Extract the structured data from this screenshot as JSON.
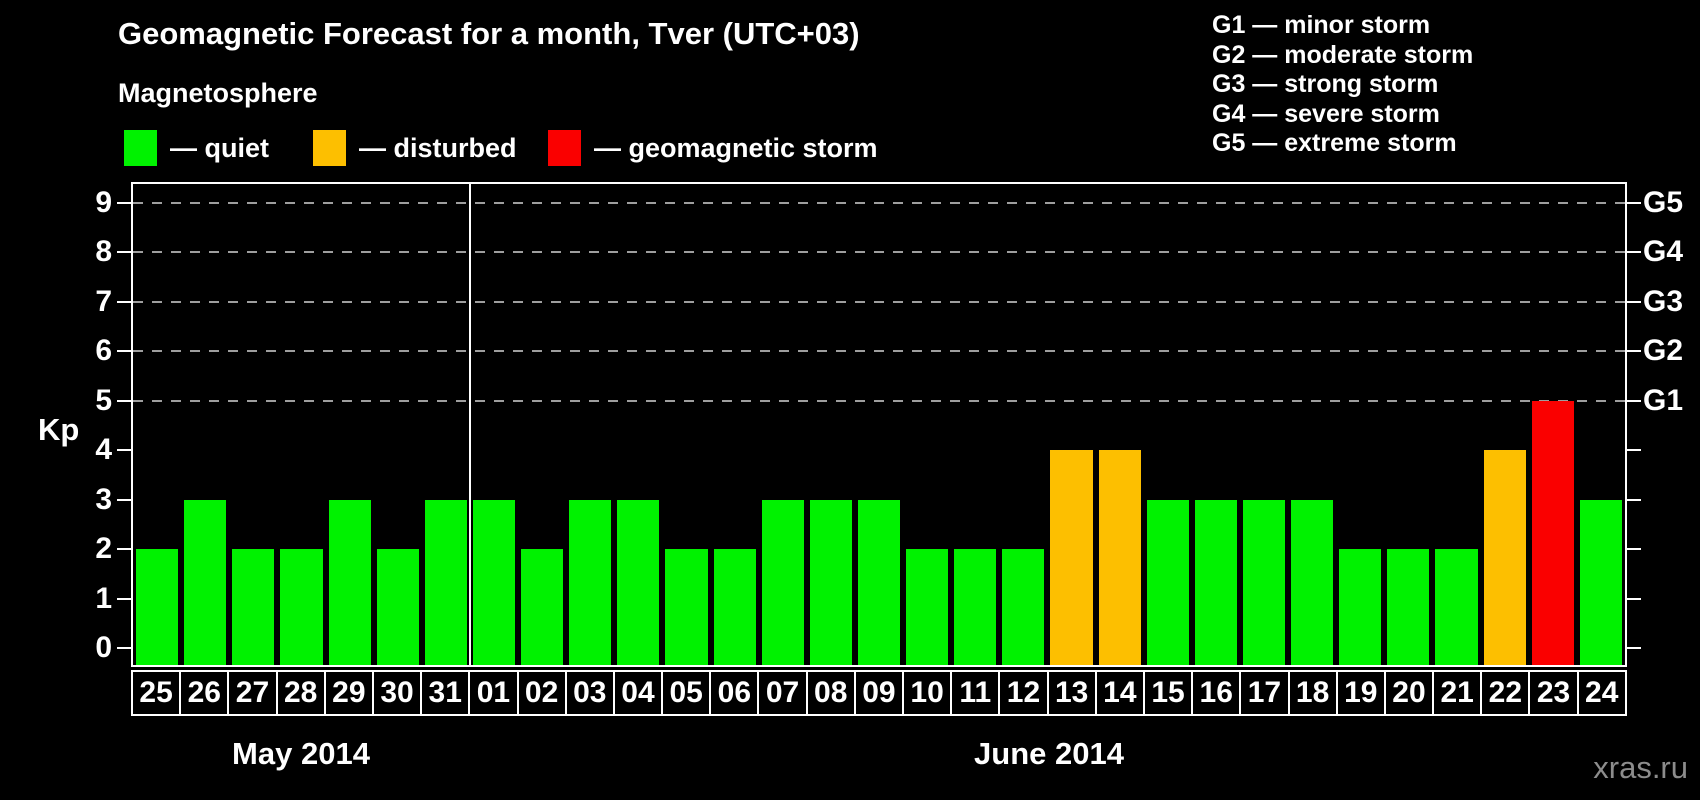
{
  "title": "Geomagnetic Forecast for a month, Tver (UTC+03)",
  "watermark": "xras.ru",
  "legend": {
    "heading": "Magnetosphere",
    "items": [
      {
        "status": "quiet",
        "label": "— quiet",
        "color": "#00f200"
      },
      {
        "status": "disturbed",
        "label": "— disturbed",
        "color": "#fdbf00"
      },
      {
        "status": "storm",
        "label": "— geomagnetic storm",
        "color": "#fa0000"
      }
    ]
  },
  "g_legend": [
    "G1 — minor storm",
    "G2 — moderate storm",
    "G3 — strong storm",
    "G4 — severe storm",
    "G5 — extreme storm"
  ],
  "chart_data": {
    "type": "bar",
    "title": "Geomagnetic Forecast for a month, Tver (UTC+03)",
    "ylabel": "Kp",
    "ylim": [
      0,
      9
    ],
    "y_ticks": [
      0,
      1,
      2,
      3,
      4,
      5,
      6,
      7,
      8,
      9
    ],
    "grid": "dashed horizontal lines at Kp 5,6,7,8,9",
    "legend_position": "top",
    "right_axis": [
      {
        "kp": 5,
        "label": "G1"
      },
      {
        "kp": 6,
        "label": "G2"
      },
      {
        "kp": 7,
        "label": "G3"
      },
      {
        "kp": 8,
        "label": "G4"
      },
      {
        "kp": 9,
        "label": "G5"
      }
    ],
    "months": [
      {
        "label": "May 2014",
        "days": 7
      },
      {
        "label": "June 2014",
        "days": 24
      }
    ],
    "categories": [
      "25",
      "26",
      "27",
      "28",
      "29",
      "30",
      "31",
      "01",
      "02",
      "03",
      "04",
      "05",
      "06",
      "07",
      "08",
      "09",
      "10",
      "11",
      "12",
      "13",
      "14",
      "15",
      "16",
      "17",
      "18",
      "19",
      "20",
      "21",
      "22",
      "23",
      "24"
    ],
    "values": [
      2,
      3,
      2,
      2,
      3,
      2,
      3,
      3,
      2,
      3,
      3,
      2,
      2,
      3,
      3,
      3,
      2,
      2,
      2,
      4,
      4,
      3,
      3,
      3,
      3,
      2,
      2,
      2,
      4,
      5,
      3
    ],
    "statuses": [
      "quiet",
      "quiet",
      "quiet",
      "quiet",
      "quiet",
      "quiet",
      "quiet",
      "quiet",
      "quiet",
      "quiet",
      "quiet",
      "quiet",
      "quiet",
      "quiet",
      "quiet",
      "quiet",
      "quiet",
      "quiet",
      "quiet",
      "disturbed",
      "disturbed",
      "quiet",
      "quiet",
      "quiet",
      "quiet",
      "quiet",
      "quiet",
      "quiet",
      "disturbed",
      "storm",
      "quiet"
    ]
  }
}
